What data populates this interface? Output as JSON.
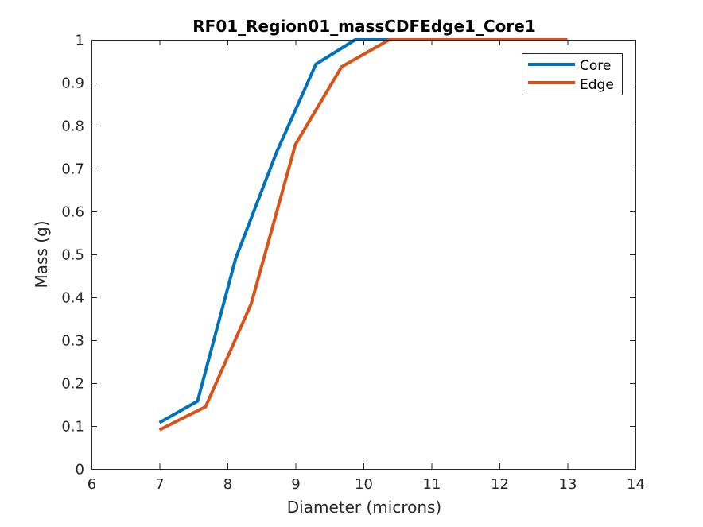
{
  "chart_data": {
    "type": "line",
    "title": "RF01_Region01_massCDFEdge1_Core1",
    "xlabel": "Diameter (microns)",
    "ylabel": "Mass (g)",
    "xlim": [
      6,
      14
    ],
    "ylim": [
      0,
      1
    ],
    "xticks": [
      "6",
      "7",
      "8",
      "9",
      "10",
      "11",
      "12",
      "13",
      "14"
    ],
    "yticks": [
      "0",
      "0.1",
      "0.2",
      "0.3",
      "0.4",
      "0.5",
      "0.6",
      "0.7",
      "0.8",
      "0.9",
      "1"
    ],
    "grid": false,
    "legend_position": "top-right",
    "series": [
      {
        "name": "Core",
        "color": "#0072BD",
        "x": [
          7.0,
          7.56,
          8.12,
          8.72,
          9.3,
          9.88,
          10.3,
          13.0
        ],
        "y": [
          0.108,
          0.158,
          0.49,
          0.737,
          0.943,
          1.0,
          1.0,
          1.0
        ]
      },
      {
        "name": "Edge",
        "color": "#D95319",
        "x": [
          7.0,
          7.68,
          8.35,
          9.0,
          9.68,
          10.38,
          13.0
        ],
        "y": [
          0.091,
          0.145,
          0.385,
          0.756,
          0.937,
          1.0,
          1.0
        ]
      }
    ]
  }
}
